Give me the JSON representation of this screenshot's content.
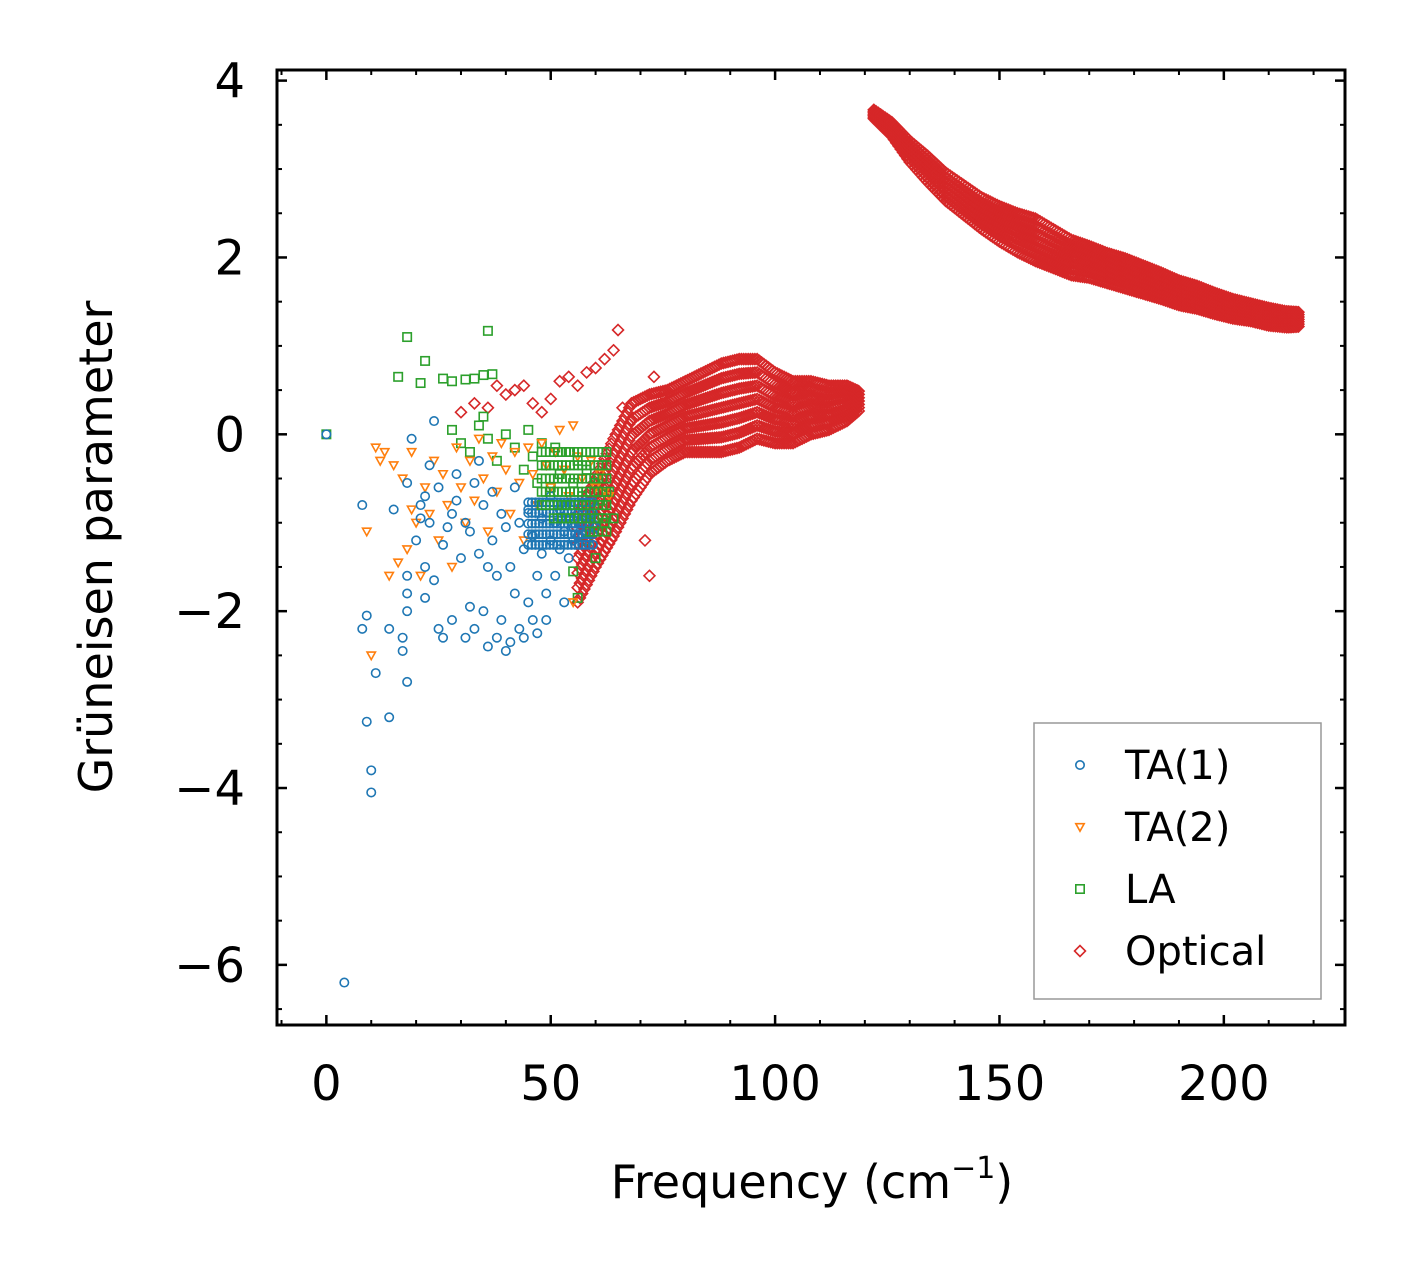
{
  "chart_data": {
    "type": "scatter",
    "title": "",
    "xlabel": "Frequency (cm",
    "xlabel_sup": "−1",
    "xlabel_close": ")",
    "ylabel": "Grüneisen parameter",
    "xlim": [
      -11,
      227
    ],
    "ylim": [
      -6.68,
      4.12
    ],
    "xticks": [
      0,
      50,
      100,
      150,
      200
    ],
    "xtick_labels": [
      "0",
      "50",
      "100",
      "150",
      "200"
    ],
    "yticks": [
      -6,
      -4,
      -2,
      0,
      2,
      4
    ],
    "ytick_labels": [
      "−6",
      "−4",
      "−2",
      "0",
      "2",
      "4"
    ],
    "legend_position": "lower-right",
    "series": [
      {
        "name": "TA(1)",
        "marker": "circle",
        "color": "#1f77b4",
        "points": [
          [
            0,
            0
          ],
          [
            4,
            -6.2
          ],
          [
            8,
            -0.8
          ],
          [
            8,
            -2.2
          ],
          [
            9,
            -2.05
          ],
          [
            9,
            -3.25
          ],
          [
            10,
            -3.8
          ],
          [
            10,
            -4.05
          ],
          [
            11,
            -2.7
          ],
          [
            14,
            -2.2
          ],
          [
            14,
            -3.2
          ],
          [
            15,
            -0.85
          ],
          [
            17,
            -2.3
          ],
          [
            17,
            -2.45
          ],
          [
            18,
            -1.6
          ],
          [
            18,
            -2.8
          ],
          [
            18,
            -2.0
          ],
          [
            18,
            -1.8
          ],
          [
            18,
            -0.55
          ],
          [
            19,
            -0.05
          ],
          [
            20,
            -1.2
          ],
          [
            21,
            -0.95
          ],
          [
            21,
            -0.8
          ],
          [
            22,
            -0.7
          ],
          [
            22,
            -1.5
          ],
          [
            22,
            -1.85
          ],
          [
            23,
            -0.35
          ],
          [
            23,
            -1.0
          ],
          [
            24,
            0.15
          ],
          [
            24,
            -1.65
          ],
          [
            25,
            -2.2
          ],
          [
            25,
            -0.6
          ],
          [
            26,
            -2.3
          ],
          [
            26,
            -1.25
          ],
          [
            27,
            -1.05
          ],
          [
            28,
            -0.9
          ],
          [
            28,
            -2.1
          ],
          [
            29,
            -0.45
          ],
          [
            29,
            -0.75
          ],
          [
            30,
            -1.4
          ],
          [
            31,
            -1.0
          ],
          [
            31,
            -2.3
          ],
          [
            32,
            -1.95
          ],
          [
            32,
            -1.1
          ],
          [
            33,
            -2.2
          ],
          [
            33,
            -0.55
          ],
          [
            34,
            -1.35
          ],
          [
            34,
            -0.3
          ],
          [
            35,
            -0.8
          ],
          [
            35,
            -2.0
          ],
          [
            36,
            -1.5
          ],
          [
            36,
            -2.4
          ],
          [
            37,
            -0.65
          ],
          [
            37,
            -1.2
          ],
          [
            38,
            -1.6
          ],
          [
            38,
            -2.3
          ],
          [
            39,
            -0.9
          ],
          [
            39,
            -2.1
          ],
          [
            40,
            -2.45
          ],
          [
            40,
            -1.05
          ],
          [
            41,
            -1.5
          ],
          [
            41,
            -2.35
          ],
          [
            42,
            -0.6
          ],
          [
            42,
            -1.8
          ],
          [
            43,
            -2.2
          ],
          [
            43,
            -1.0
          ],
          [
            44,
            -1.3
          ],
          [
            44,
            -2.3
          ],
          [
            45,
            -0.85
          ],
          [
            45,
            -1.9
          ],
          [
            46,
            -2.1
          ],
          [
            46,
            -1.15
          ],
          [
            47,
            -1.6
          ],
          [
            47,
            -2.25
          ],
          [
            48,
            -0.95
          ],
          [
            48,
            -1.35
          ],
          [
            49,
            -1.8
          ],
          [
            49,
            -2.1
          ],
          [
            50,
            -0.7
          ],
          [
            50,
            -1.2
          ],
          [
            51,
            -1.0
          ],
          [
            51,
            -1.6
          ],
          [
            52,
            -0.85
          ],
          [
            52,
            -1.3
          ],
          [
            53,
            -1.1
          ],
          [
            53,
            -1.9
          ],
          [
            54,
            -0.95
          ],
          [
            54,
            -1.4
          ],
          [
            55,
            -1.2
          ],
          [
            55,
            -1.05
          ],
          [
            56,
            -0.9
          ],
          [
            56,
            -1.15
          ],
          [
            57,
            -1.0
          ],
          [
            58,
            -1.1
          ],
          [
            59,
            -0.95
          ],
          [
            60,
            -1.05
          ]
        ]
      },
      {
        "name": "TA(2)",
        "marker": "triangle-down",
        "color": "#ff7f0e",
        "points": [
          [
            9,
            -1.1
          ],
          [
            10,
            -2.5
          ],
          [
            11,
            -0.15
          ],
          [
            12,
            -0.3
          ],
          [
            13,
            -0.2
          ],
          [
            14,
            -1.6
          ],
          [
            15,
            -0.35
          ],
          [
            16,
            -1.45
          ],
          [
            17,
            -0.5
          ],
          [
            18,
            -1.3
          ],
          [
            19,
            -0.85
          ],
          [
            19,
            -0.2
          ],
          [
            20,
            -1.0
          ],
          [
            21,
            -1.6
          ],
          [
            22,
            -0.6
          ],
          [
            23,
            -0.9
          ],
          [
            24,
            -0.3
          ],
          [
            25,
            -1.2
          ],
          [
            26,
            -0.45
          ],
          [
            27,
            -0.8
          ],
          [
            28,
            -1.5
          ],
          [
            29,
            -0.15
          ],
          [
            30,
            -0.6
          ],
          [
            31,
            -1.0
          ],
          [
            32,
            -0.3
          ],
          [
            33,
            -0.75
          ],
          [
            34,
            -0.05
          ],
          [
            35,
            -0.5
          ],
          [
            36,
            -1.1
          ],
          [
            37,
            -0.25
          ],
          [
            38,
            -0.65
          ],
          [
            39,
            -0.1
          ],
          [
            40,
            -0.4
          ],
          [
            41,
            -0.9
          ],
          [
            42,
            -0.2
          ],
          [
            43,
            -0.55
          ],
          [
            44,
            -1.2
          ],
          [
            45,
            -0.15
          ],
          [
            46,
            -0.45
          ],
          [
            47,
            -0.8
          ],
          [
            48,
            -0.1
          ],
          [
            49,
            -0.35
          ],
          [
            50,
            -0.6
          ],
          [
            51,
            -0.2
          ],
          [
            52,
            0.05
          ],
          [
            53,
            -0.4
          ],
          [
            54,
            -0.7
          ],
          [
            55,
            0.1
          ],
          [
            55,
            -1.9
          ],
          [
            56,
            -0.25
          ],
          [
            57,
            -0.5
          ],
          [
            58,
            -0.8
          ],
          [
            59,
            -0.3
          ],
          [
            60,
            -0.6
          ],
          [
            61,
            -0.45
          ],
          [
            62,
            -0.65
          ],
          [
            63,
            -0.7
          ]
        ]
      },
      {
        "name": "LA",
        "marker": "square",
        "color": "#2ca02c",
        "points": [
          [
            0,
            0
          ],
          [
            16,
            0.65
          ],
          [
            18,
            1.1
          ],
          [
            21,
            0.58
          ],
          [
            22,
            0.83
          ],
          [
            26,
            0.63
          ],
          [
            28,
            0.6
          ],
          [
            31,
            0.62
          ],
          [
            33,
            0.63
          ],
          [
            35,
            0.67
          ],
          [
            36,
            1.17
          ],
          [
            37,
            0.68
          ],
          [
            28,
            0.05
          ],
          [
            30,
            -0.1
          ],
          [
            32,
            -0.2
          ],
          [
            34,
            0.1
          ],
          [
            35,
            0.2
          ],
          [
            36,
            -0.05
          ],
          [
            38,
            -0.3
          ],
          [
            40,
            0.0
          ],
          [
            42,
            -0.15
          ],
          [
            44,
            -0.4
          ],
          [
            45,
            0.05
          ],
          [
            46,
            -0.25
          ],
          [
            47,
            -0.55
          ],
          [
            48,
            -0.1
          ],
          [
            49,
            -0.35
          ],
          [
            50,
            -0.6
          ],
          [
            51,
            -0.15
          ],
          [
            52,
            -0.45
          ],
          [
            53,
            -0.8
          ],
          [
            54,
            -0.2
          ],
          [
            55,
            -0.55
          ],
          [
            55,
            -1.55
          ],
          [
            56,
            -0.3
          ],
          [
            56,
            -1.85
          ],
          [
            57,
            -0.7
          ],
          [
            58,
            -0.4
          ],
          [
            58,
            -1.2
          ],
          [
            59,
            -0.9
          ],
          [
            60,
            -0.55
          ],
          [
            60,
            -1.4
          ],
          [
            61,
            -0.75
          ],
          [
            62,
            -1.0
          ],
          [
            63,
            -0.65
          ],
          [
            64,
            -0.95
          ]
        ]
      },
      {
        "name": "Optical",
        "marker": "diamond",
        "color": "#d62728",
        "points": [
          [
            30,
            0.25
          ],
          [
            33,
            0.35
          ],
          [
            36,
            0.3
          ],
          [
            38,
            0.55
          ],
          [
            40,
            0.45
          ],
          [
            42,
            0.5
          ],
          [
            44,
            0.55
          ],
          [
            46,
            0.35
          ],
          [
            48,
            0.25
          ],
          [
            50,
            0.4
          ],
          [
            52,
            0.6
          ],
          [
            54,
            0.65
          ],
          [
            56,
            0.55
          ],
          [
            58,
            0.7
          ],
          [
            60,
            0.75
          ],
          [
            62,
            0.85
          ],
          [
            64,
            0.95
          ],
          [
            65,
            1.18
          ],
          [
            66,
            0.3
          ],
          [
            68,
            0.15
          ],
          [
            70,
            -0.2
          ],
          [
            71,
            -1.2
          ],
          [
            72,
            -1.6
          ],
          [
            73,
            0.65
          ],
          [
            75,
            0.45
          ]
        ]
      }
    ],
    "optical_bands": [
      {
        "note": "dense cloud 56-120",
        "x": [
          56,
          60,
          64,
          68,
          72,
          76,
          80,
          84,
          88,
          92,
          96,
          100,
          104,
          108,
          112,
          116,
          119
        ],
        "ymid": [
          -1.4,
          -1.0,
          -0.6,
          -0.2,
          0.0,
          0.1,
          0.2,
          0.25,
          0.3,
          0.35,
          0.4,
          0.3,
          0.25,
          0.3,
          0.3,
          0.35,
          0.38
        ],
        "half": [
          0.5,
          0.5,
          0.55,
          0.55,
          0.45,
          0.4,
          0.4,
          0.45,
          0.5,
          0.5,
          0.45,
          0.4,
          0.35,
          0.3,
          0.25,
          0.2,
          0.1
        ]
      },
      {
        "note": "dense cloud 122-218",
        "x": [
          122,
          126,
          130,
          134,
          138,
          142,
          146,
          150,
          154,
          158,
          162,
          166,
          170,
          174,
          178,
          182,
          186,
          190,
          194,
          198,
          202,
          206,
          210,
          214,
          217
        ],
        "ymid": [
          3.62,
          3.45,
          3.2,
          3.0,
          2.8,
          2.65,
          2.5,
          2.38,
          2.28,
          2.2,
          2.1,
          2.0,
          1.95,
          1.88,
          1.82,
          1.75,
          1.68,
          1.6,
          1.55,
          1.48,
          1.42,
          1.38,
          1.33,
          1.3,
          1.3
        ],
        "half": [
          0.05,
          0.08,
          0.12,
          0.15,
          0.16,
          0.17,
          0.18,
          0.2,
          0.22,
          0.24,
          0.22,
          0.2,
          0.18,
          0.17,
          0.17,
          0.16,
          0.15,
          0.14,
          0.13,
          0.12,
          0.11,
          0.1,
          0.1,
          0.09,
          0.08
        ]
      }
    ]
  }
}
